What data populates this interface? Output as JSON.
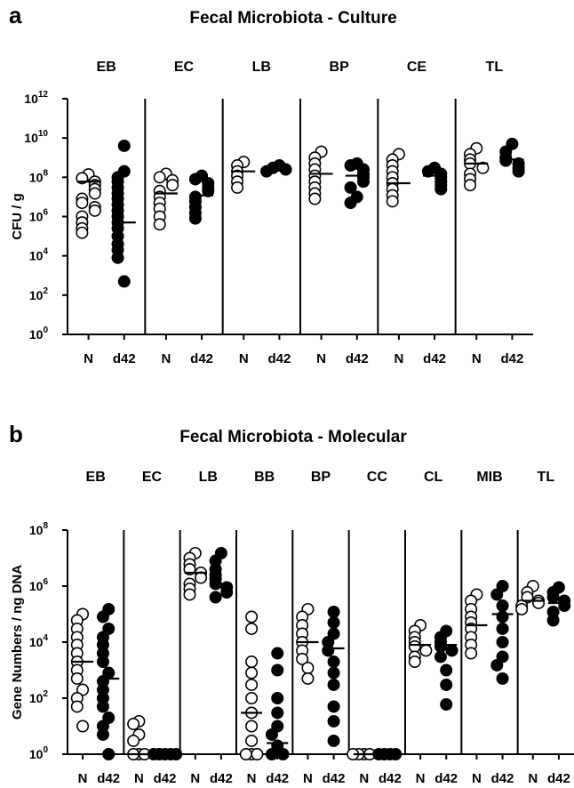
{
  "colors": {
    "open_fill": "#ffffff",
    "filled": "#000000",
    "axis": "#000000"
  },
  "chart_data": [
    {
      "type": "scatter",
      "panel_letter": "a",
      "title": "Fecal Microbiota - Culture",
      "ylabel": "CFU / g",
      "yscale": "log",
      "ylim_exp": [
        0,
        12
      ],
      "ytick_base": "10",
      "yticks_exp": [
        "0",
        "2",
        "4",
        "6",
        "8",
        "10",
        "12"
      ],
      "xtick_labels": [
        "N",
        "d42"
      ],
      "groups": [
        {
          "name": "EB",
          "N": [
            140000000,
            90000000,
            60000000,
            40000000,
            25000000,
            15000000,
            8000000,
            5000000,
            3000000,
            2000000,
            1000000,
            500000,
            250000,
            150000
          ],
          "d42": [
            4000000000,
            200000000,
            100000000,
            60000000,
            30000000,
            15000000,
            8000000,
            4000000,
            2000000,
            1000000,
            500000,
            250000,
            100000,
            40000,
            20000,
            8000,
            500
          ],
          "N_median": 60000000,
          "d42_median": 500000
        },
        {
          "name": "EC",
          "N": [
            150000000,
            100000000,
            70000000,
            40000000,
            20000000,
            10000000,
            5000000,
            2500000,
            1000000,
            400000
          ],
          "d42": [
            120000000,
            80000000,
            50000000,
            30000000,
            20000000,
            10000000,
            6000000,
            3000000,
            1500000,
            800000
          ],
          "N_median": 15000000,
          "d42_median": 12000000
        },
        {
          "name": "LB",
          "N": [
            600000000,
            400000000,
            200000000,
            120000000,
            60000000,
            30000000
          ],
          "d42": [
            400000000,
            300000000,
            250000000,
            200000000
          ],
          "N_median": 200000000,
          "d42_median": 250000000
        },
        {
          "name": "BP",
          "N": [
            2000000000,
            1000000000,
            500000000,
            250000000,
            120000000,
            60000000,
            30000000,
            15000000,
            8000000
          ],
          "d42": [
            500000000,
            400000000,
            250000000,
            150000000,
            100000000,
            60000000,
            30000000,
            10000000,
            5000000
          ],
          "N_median": 150000000,
          "d42_median": 120000000
        },
        {
          "name": "CE",
          "N": [
            1500000000,
            800000000,
            400000000,
            200000000,
            100000000,
            50000000,
            25000000,
            12000000,
            6000000
          ],
          "d42": [
            300000000,
            200000000,
            150000000,
            100000000,
            60000000,
            40000000,
            25000000
          ],
          "N_median": 50000000,
          "d42_median": 120000000
        },
        {
          "name": "TL",
          "N": [
            3000000000,
            1500000000,
            800000000,
            500000000,
            300000000,
            150000000,
            80000000,
            40000000
          ],
          "d42": [
            5000000000,
            2000000000,
            1000000000,
            700000000,
            500000000,
            300000000,
            200000000
          ],
          "N_median": 500000000,
          "d42_median": 800000000
        }
      ]
    },
    {
      "type": "scatter",
      "panel_letter": "b",
      "title": "Fecal Microbiota - Molecular",
      "ylabel": "Gene Numbers / ng DNA",
      "yscale": "log",
      "ylim_exp": [
        0,
        8
      ],
      "ytick_base": "10",
      "yticks_exp": [
        "0",
        "2",
        "4",
        "6",
        "8"
      ],
      "xtick_labels": [
        "N",
        "d42"
      ],
      "groups": [
        {
          "name": "EB",
          "N": [
            100000,
            60000,
            30000,
            15000,
            8000,
            4000,
            2000,
            1000,
            500,
            200,
            100,
            50,
            10
          ],
          "d42": [
            150000,
            80000,
            30000,
            15000,
            8000,
            4000,
            2000,
            800,
            400,
            200,
            100,
            50,
            20,
            10,
            5,
            1
          ],
          "N_median": 2000,
          "d42_median": 500
        },
        {
          "name": "EC",
          "N": [
            15,
            12,
            5,
            3,
            1,
            1,
            1
          ],
          "d42": [
            1,
            1,
            1,
            1,
            1
          ],
          "N_median": 1,
          "d42_median": 1
        },
        {
          "name": "LB",
          "N": [
            15000000,
            10000000,
            6000000,
            4000000,
            3000000,
            2000000,
            1200000,
            800000,
            500000
          ],
          "d42": [
            15000000,
            8000000,
            4000000,
            2500000,
            1800000,
            1200000,
            900000,
            600000,
            400000
          ],
          "N_median": 3000000,
          "d42_median": 1200000
        },
        {
          "name": "BB",
          "N": [
            80000,
            30000,
            2000,
            800,
            300,
            100,
            30,
            10,
            3,
            1,
            1,
            1
          ],
          "d42": [
            4000,
            1000,
            100,
            30,
            10,
            5,
            2,
            1,
            1
          ],
          "N_median": 30,
          "d42_median": 2.5
        },
        {
          "name": "BP",
          "N": [
            150000,
            80000,
            40000,
            20000,
            10000,
            5000,
            2500,
            1200,
            500
          ],
          "d42": [
            120000,
            50000,
            20000,
            10000,
            5000,
            2000,
            800,
            300,
            50,
            15,
            3
          ],
          "N_median": 10000,
          "d42_median": 6000
        },
        {
          "name": "CC",
          "N": [
            1,
            1,
            1,
            1
          ],
          "d42": [
            1,
            1,
            1,
            1
          ],
          "N_median": 1,
          "d42_median": 1
        },
        {
          "name": "CL",
          "N": [
            40000,
            25000,
            15000,
            10000,
            7000,
            5000,
            3000,
            2000
          ],
          "d42": [
            25000,
            15000,
            10000,
            7000,
            5000,
            3000,
            1000,
            300,
            60
          ],
          "N_median": 8000,
          "d42_median": 8000
        },
        {
          "name": "MIB",
          "N": [
            500000,
            300000,
            150000,
            80000,
            50000,
            30000,
            15000,
            8000,
            4000
          ],
          "d42": [
            1000000,
            500000,
            200000,
            80000,
            30000,
            10000,
            3000,
            1500,
            500
          ],
          "N_median": 40000,
          "d42_median": 100000
        },
        {
          "name": "TL",
          "N": [
            1000000,
            600000,
            400000,
            300000,
            250000,
            200000,
            150000
          ],
          "d42": [
            900000,
            600000,
            400000,
            300000,
            200000,
            120000,
            60000
          ],
          "N_median": 300000,
          "d42_median": 250000
        }
      ]
    }
  ]
}
